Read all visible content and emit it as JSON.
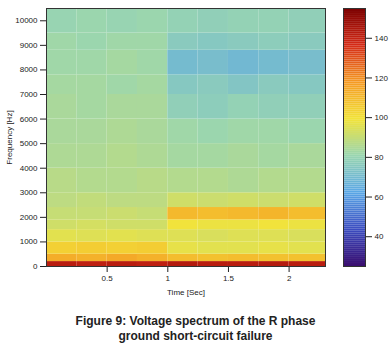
{
  "chart_data": {
    "type": "heatmap",
    "title": "Figure 9: Voltage spectrum of the R phase ground short-circuit failure",
    "x_label": "Time [Sec]",
    "y_label": "Frequency [Hz]",
    "xlim": [
      0,
      2.3
    ],
    "xticks": [
      0.5,
      1,
      1.5,
      2
    ],
    "ylim": [
      0,
      10500
    ],
    "yticks": [
      0,
      1000,
      2000,
      3000,
      4000,
      5000,
      6000,
      7000,
      8000,
      9000,
      10000
    ],
    "x_bins": [
      0,
      0.25,
      0.5,
      0.75,
      1,
      1.25,
      1.5,
      1.75,
      2,
      2.3
    ],
    "y_bins": [
      0,
      200,
      500,
      1000,
      1500,
      1900,
      2400,
      3000,
      4000,
      5000,
      6000,
      7000,
      7800,
      8800,
      9500,
      10500
    ],
    "cells": [
      [
        142,
        141,
        142,
        141,
        143,
        142,
        142,
        143,
        142
      ],
      [
        113,
        112,
        114,
        112,
        109,
        108,
        109,
        108,
        108
      ],
      [
        104,
        105,
        104,
        105,
        97,
        96,
        96,
        97,
        96
      ],
      [
        96,
        95,
        96,
        95,
        95,
        94,
        95,
        95,
        94
      ],
      [
        92,
        93,
        92,
        92,
        99,
        98,
        98,
        99,
        98
      ],
      [
        90,
        90,
        91,
        90,
        110,
        109,
        110,
        111,
        109
      ],
      [
        88,
        89,
        88,
        88,
        92,
        91,
        92,
        91,
        92
      ],
      [
        87,
        86,
        86,
        87,
        86,
        86,
        85,
        86,
        86
      ],
      [
        85,
        85,
        86,
        85,
        83,
        83,
        84,
        83,
        84
      ],
      [
        84,
        84,
        85,
        84,
        82,
        81,
        82,
        82,
        81
      ],
      [
        84,
        83,
        84,
        84,
        78,
        77,
        79,
        78,
        78
      ],
      [
        83,
        83,
        82,
        83,
        75,
        76,
        74,
        76,
        75
      ],
      [
        82,
        82,
        83,
        82,
        70,
        71,
        69,
        70,
        71
      ],
      [
        82,
        81,
        82,
        82,
        76,
        75,
        76,
        77,
        76
      ],
      [
        80,
        81,
        80,
        81,
        79,
        78,
        79,
        79,
        78
      ]
    ],
    "colorbar_range": [
      25,
      155
    ],
    "colorbar_ticks": [
      40,
      60,
      80,
      100,
      120,
      140
    ]
  }
}
